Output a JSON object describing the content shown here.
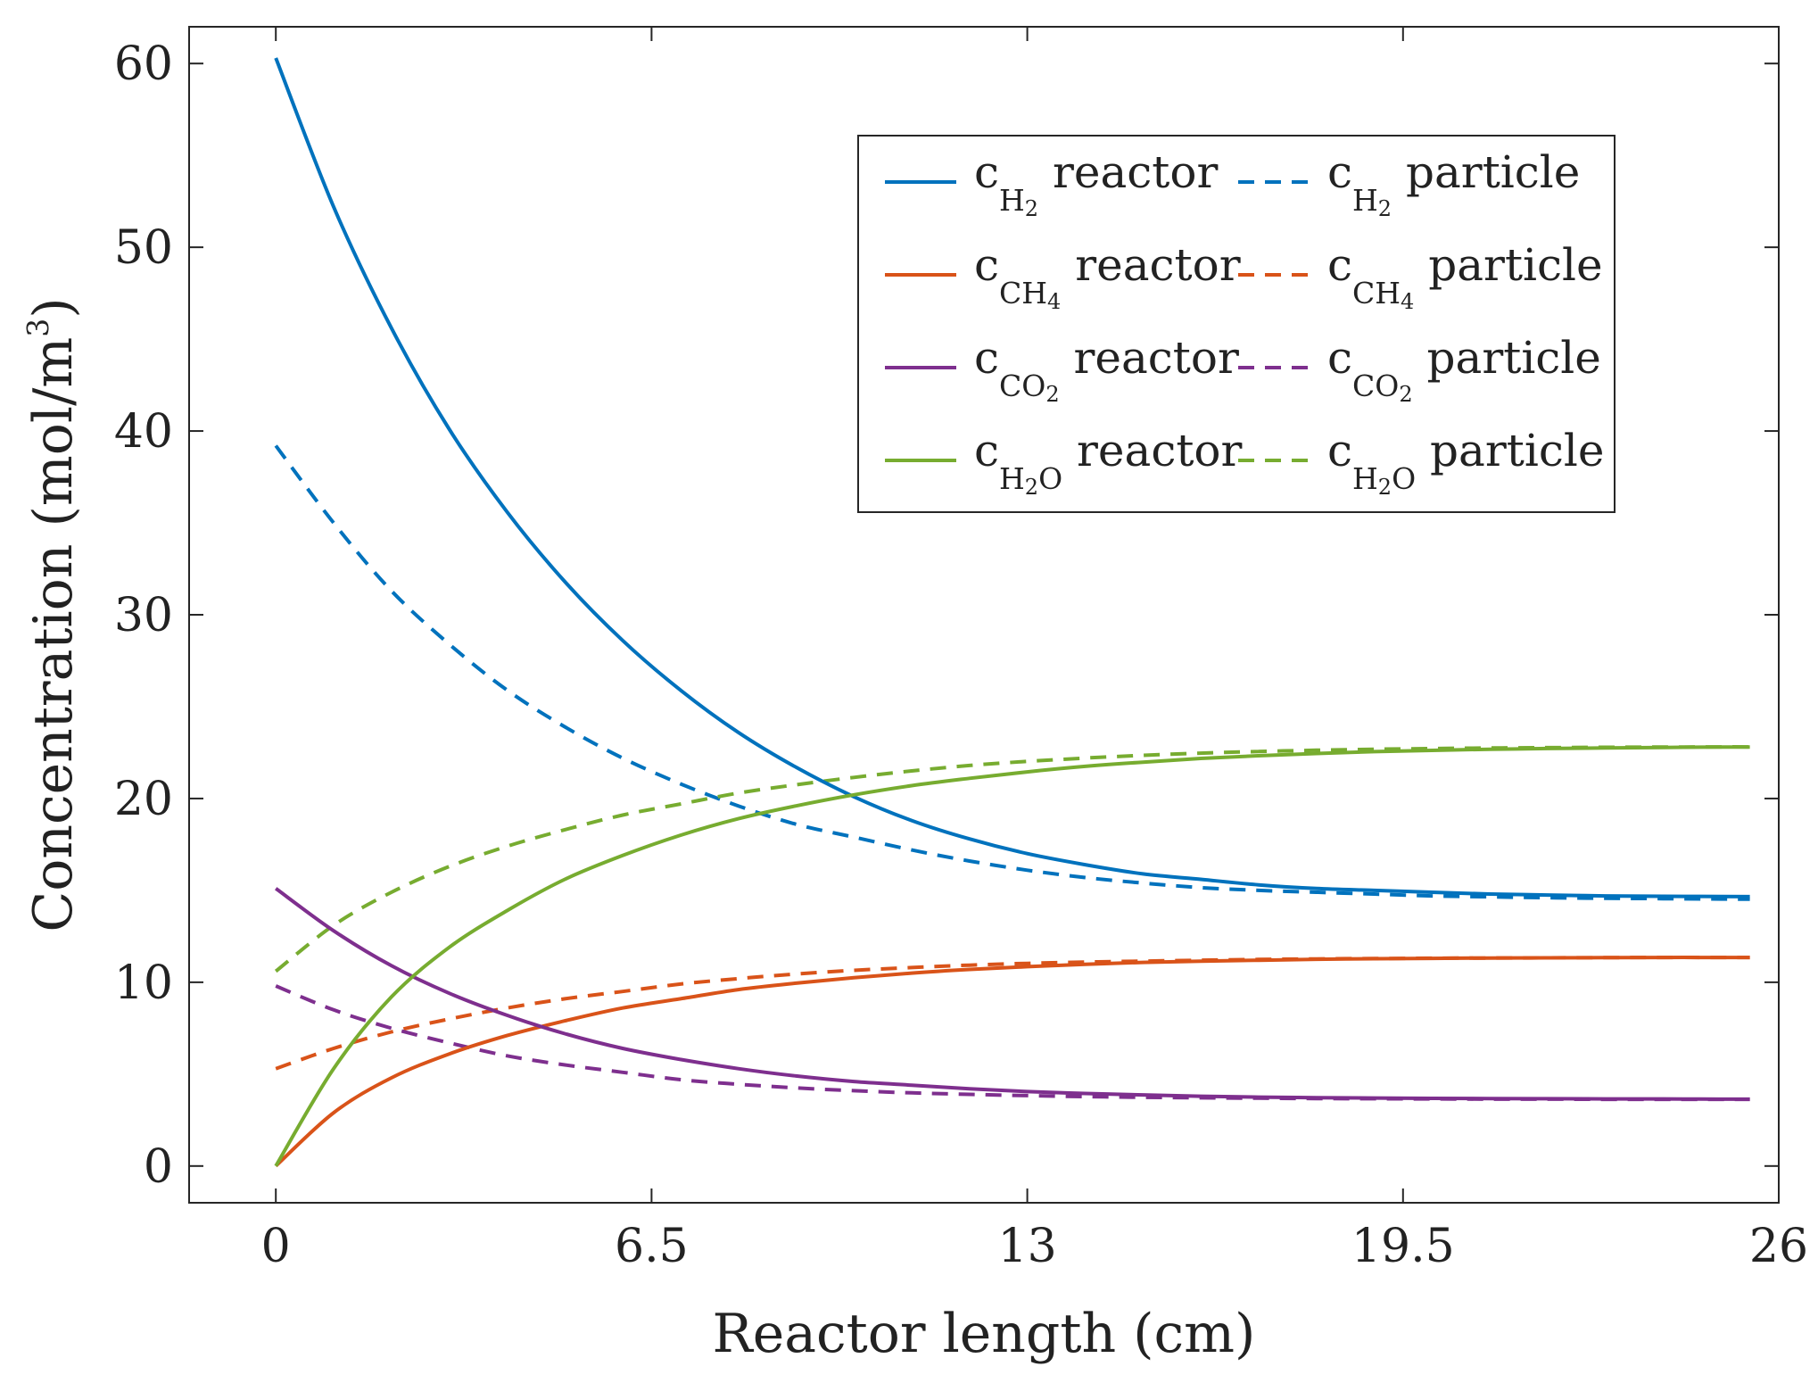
{
  "chart_data": {
    "type": "line",
    "title": "",
    "xlabel": "Reactor length (cm)",
    "ylabel": "Concentration (mol/m3)",
    "ylabel_parts": {
      "main": "Concentration (mol/m",
      "sup": "3",
      "close": ")"
    },
    "xlim": [
      -1.5,
      26
    ],
    "ylim": [
      -2,
      62
    ],
    "xticks": [
      0,
      6.5,
      13,
      19.5,
      26
    ],
    "xtick_labels": [
      "0",
      "6.5",
      "13",
      "19.5",
      "26"
    ],
    "yticks": [
      0,
      10,
      20,
      30,
      40,
      50,
      60
    ],
    "ytick_labels": [
      "0",
      "10",
      "20",
      "30",
      "40",
      "50",
      "60"
    ],
    "grid": false,
    "legend_position": "top-right",
    "x": [
      0,
      1,
      2,
      3,
      4,
      5,
      6,
      7,
      8,
      9,
      10,
      11,
      12,
      13,
      14,
      15,
      16,
      17,
      18,
      19,
      20,
      21,
      22,
      23,
      24,
      25,
      25.5
    ],
    "series": [
      {
        "name": "cH2 reactor",
        "sym": "c",
        "sub": "H",
        "subsub": "2",
        "suffix": "O",
        "suffix_on": false,
        "desc": "reactor",
        "color": "#0072BD",
        "dash": "solid",
        "values": [
          60.3,
          52.2,
          45.6,
          40.1,
          35.6,
          31.8,
          28.6,
          25.9,
          23.6,
          21.7,
          20.1,
          18.8,
          17.8,
          17.0,
          16.4,
          15.9,
          15.6,
          15.3,
          15.1,
          15.0,
          14.9,
          14.8,
          14.75,
          14.7,
          14.68,
          14.67,
          14.66
        ]
      },
      {
        "name": "cH2 particle",
        "sym": "c",
        "sub": "H",
        "subsub": "2",
        "suffix": "",
        "desc": "particle",
        "color": "#0072BD",
        "dash": "dashed",
        "values": [
          39.2,
          35.0,
          31.3,
          28.4,
          25.9,
          23.9,
          22.2,
          20.8,
          19.6,
          18.6,
          17.9,
          17.2,
          16.6,
          16.1,
          15.7,
          15.4,
          15.15,
          15.0,
          14.9,
          14.8,
          14.7,
          14.65,
          14.6,
          14.57,
          14.55,
          14.53,
          14.52
        ]
      },
      {
        "name": "cCH4 reactor",
        "sym": "c",
        "sub": "CH",
        "subsub": "4",
        "suffix": "",
        "desc": "reactor",
        "color": "#D95319",
        "dash": "solid",
        "values": [
          0.0,
          2.9,
          4.8,
          6.1,
          7.1,
          7.9,
          8.6,
          9.1,
          9.6,
          9.95,
          10.25,
          10.5,
          10.7,
          10.85,
          10.98,
          11.08,
          11.15,
          11.2,
          11.25,
          11.28,
          11.3,
          11.32,
          11.33,
          11.34,
          11.35,
          11.35,
          11.35
        ]
      },
      {
        "name": "cCH4 particle",
        "sym": "c",
        "sub": "CH",
        "subsub": "4",
        "suffix": "",
        "desc": "particle",
        "color": "#D95319",
        "dash": "dashed",
        "values": [
          5.3,
          6.4,
          7.3,
          8.0,
          8.6,
          9.1,
          9.5,
          9.9,
          10.2,
          10.45,
          10.65,
          10.8,
          10.93,
          11.03,
          11.1,
          11.15,
          11.2,
          11.24,
          11.27,
          11.29,
          11.31,
          11.32,
          11.33,
          11.34,
          11.35,
          11.35,
          11.35
        ]
      },
      {
        "name": "cCO2 reactor",
        "sym": "c",
        "sub": "CO",
        "subsub": "2",
        "suffix": "",
        "desc": "reactor",
        "color": "#7E2F8E",
        "dash": "solid",
        "values": [
          15.1,
          12.8,
          10.9,
          9.4,
          8.2,
          7.2,
          6.4,
          5.8,
          5.3,
          4.9,
          4.6,
          4.4,
          4.2,
          4.05,
          3.95,
          3.87,
          3.8,
          3.75,
          3.72,
          3.7,
          3.68,
          3.67,
          3.66,
          3.65,
          3.65,
          3.64,
          3.64
        ]
      },
      {
        "name": "cCO2 particle",
        "sym": "c",
        "sub": "CO",
        "subsub": "2",
        "suffix": "",
        "desc": "particle",
        "color": "#7E2F8E",
        "dash": "dashed",
        "values": [
          9.8,
          8.5,
          7.5,
          6.7,
          6.0,
          5.5,
          5.1,
          4.7,
          4.45,
          4.25,
          4.1,
          3.98,
          3.9,
          3.83,
          3.78,
          3.74,
          3.71,
          3.69,
          3.67,
          3.66,
          3.65,
          3.64,
          3.64,
          3.63,
          3.63,
          3.63,
          3.63
        ]
      },
      {
        "name": "cH2O reactor",
        "sym": "c",
        "sub": "H",
        "subsub": "2",
        "suffix": "O",
        "desc": "reactor",
        "color": "#77AC30",
        "dash": "solid",
        "values": [
          0.0,
          5.3,
          9.2,
          11.9,
          13.9,
          15.6,
          16.9,
          18.0,
          18.9,
          19.6,
          20.2,
          20.7,
          21.1,
          21.45,
          21.75,
          21.98,
          22.18,
          22.33,
          22.45,
          22.55,
          22.62,
          22.68,
          22.72,
          22.75,
          22.78,
          22.8,
          22.8
        ]
      },
      {
        "name": "cH2O particle",
        "sym": "c",
        "sub": "H",
        "subsub": "2",
        "suffix": "O",
        "desc": "particle",
        "color": "#77AC30",
        "dash": "dashed",
        "values": [
          10.6,
          13.1,
          14.9,
          16.3,
          17.4,
          18.3,
          19.1,
          19.7,
          20.3,
          20.75,
          21.15,
          21.5,
          21.8,
          22.02,
          22.2,
          22.35,
          22.47,
          22.56,
          22.63,
          22.68,
          22.72,
          22.75,
          22.77,
          22.79,
          22.8,
          22.81,
          22.81
        ]
      }
    ]
  }
}
